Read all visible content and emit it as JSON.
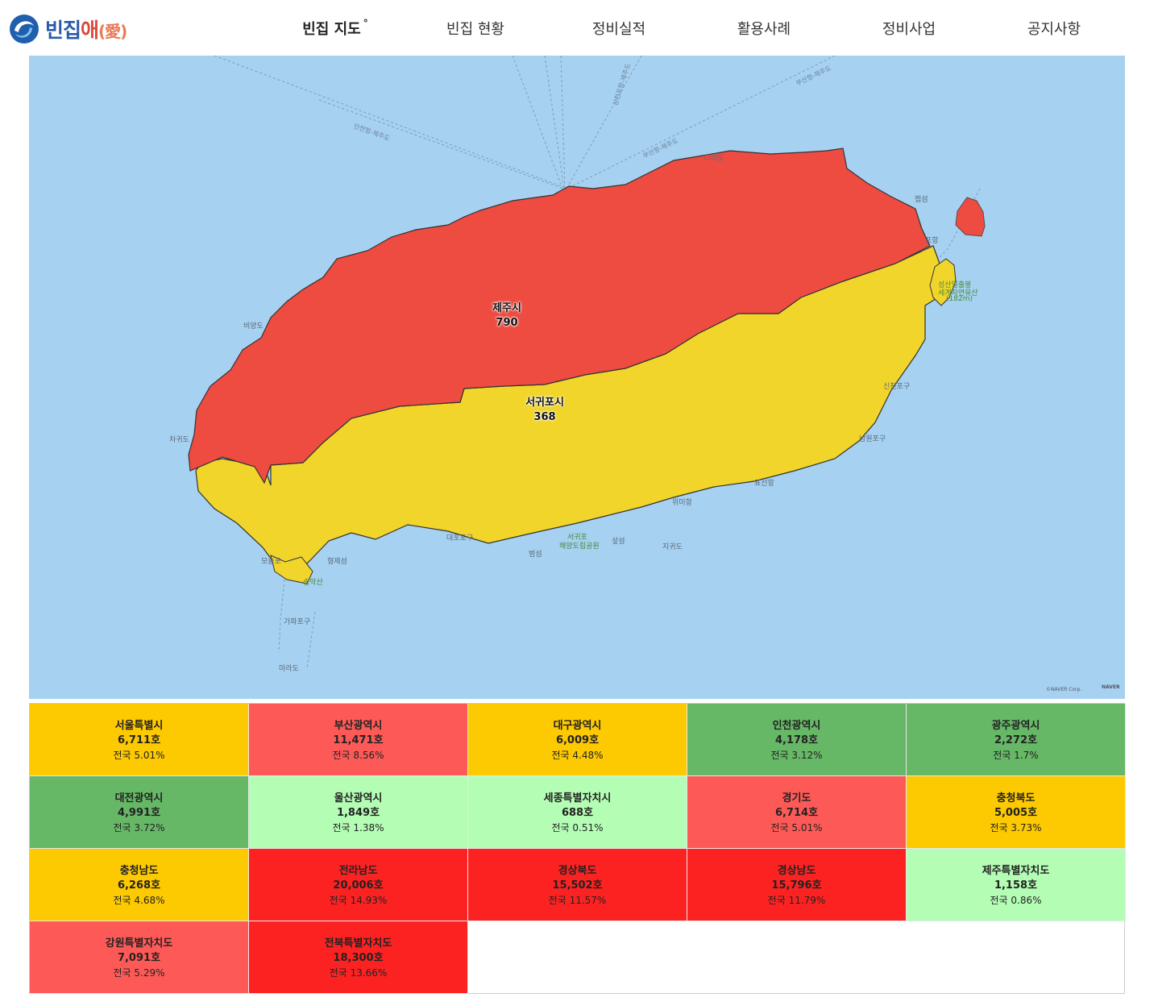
{
  "header": {
    "logo": {
      "text_main": "빈집",
      "text_accent": "애",
      "text_paren": "(愛)"
    },
    "nav": [
      {
        "label": "빈집 지도",
        "active": true
      },
      {
        "label": "빈집 현황",
        "active": false
      },
      {
        "label": "정비실적",
        "active": false
      },
      {
        "label": "활용사례",
        "active": false
      },
      {
        "label": "정비사업",
        "active": false
      },
      {
        "label": "공지사항",
        "active": false
      }
    ],
    "degree_mark": "°"
  },
  "map": {
    "regions": [
      {
        "name": "제주시",
        "count": "790",
        "color": "#ee4b41"
      },
      {
        "name": "서귀포시",
        "count": "368",
        "color": "#f1d52b"
      }
    ],
    "places": [
      "비양도",
      "차귀도",
      "다려도",
      "찝섬",
      "포항",
      "성산일출봉",
      "세계자연유산",
      "(182m)",
      "모슬포",
      "송악산",
      "형제섬",
      "대포포구",
      "범섬",
      "서귀포",
      "해양도립공원",
      "섶섬",
      "지귀도",
      "위미항",
      "표선항",
      "신천포구",
      "남원포구",
      "가파포구",
      "마라도"
    ],
    "ferry_routes": [
      "인천항-제주도",
      "부산항-제주도",
      "부산항-제주도",
      "삼천포항-제주도"
    ],
    "credit": "©NAVER Corp.",
    "brand": "NAVER",
    "water_color": "#a6d1f1"
  },
  "stats": [
    {
      "name": "서울특별시",
      "count": "6,711호",
      "pct": "전국 5.01%",
      "color": "#fdc900"
    },
    {
      "name": "부산광역시",
      "count": "11,471호",
      "pct": "전국 8.56%",
      "color": "#fd5a57"
    },
    {
      "name": "대구광역시",
      "count": "6,009호",
      "pct": "전국 4.48%",
      "color": "#fdc900"
    },
    {
      "name": "인천광역시",
      "count": "4,178호",
      "pct": "전국 3.12%",
      "color": "#66b866"
    },
    {
      "name": "광주광역시",
      "count": "2,272호",
      "pct": "전국 1.7%",
      "color": "#66b866"
    },
    {
      "name": "대전광역시",
      "count": "4,991호",
      "pct": "전국 3.72%",
      "color": "#66b866"
    },
    {
      "name": "울산광역시",
      "count": "1,849호",
      "pct": "전국 1.38%",
      "color": "#b4fdb4"
    },
    {
      "name": "세종특별자치시",
      "count": "688호",
      "pct": "전국 0.51%",
      "color": "#b4fdb4"
    },
    {
      "name": "경기도",
      "count": "6,714호",
      "pct": "전국 5.01%",
      "color": "#fd5a57"
    },
    {
      "name": "충청북도",
      "count": "5,005호",
      "pct": "전국 3.73%",
      "color": "#fdc900"
    },
    {
      "name": "충청남도",
      "count": "6,268호",
      "pct": "전국 4.68%",
      "color": "#fdc900"
    },
    {
      "name": "전라남도",
      "count": "20,006호",
      "pct": "전국 14.93%",
      "color": "#fd2222"
    },
    {
      "name": "경상북도",
      "count": "15,502호",
      "pct": "전국 11.57%",
      "color": "#fd2222"
    },
    {
      "name": "경상남도",
      "count": "15,796호",
      "pct": "전국 11.79%",
      "color": "#fd2222"
    },
    {
      "name": "제주특별자치도",
      "count": "1,158호",
      "pct": "전국 0.86%",
      "color": "#b4fdb4"
    },
    {
      "name": "강원특별자치도",
      "count": "7,091호",
      "pct": "전국 5.29%",
      "color": "#fd5a57"
    },
    {
      "name": "전북특별자치도",
      "count": "18,300호",
      "pct": "전국 13.66%",
      "color": "#fd2222"
    }
  ]
}
